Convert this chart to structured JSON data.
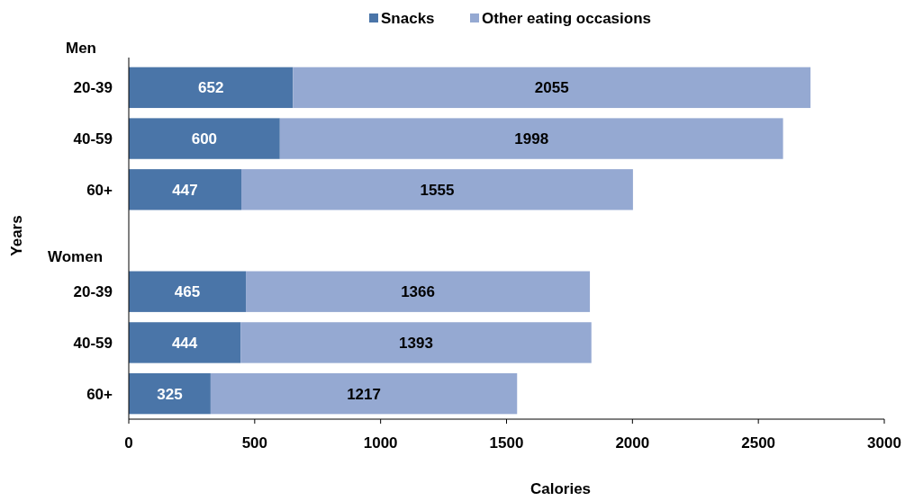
{
  "chart_data": {
    "type": "bar",
    "orientation": "horizontal",
    "stacked": true,
    "categories": [
      "20-39",
      "40-59",
      "60+",
      null,
      "20-39",
      "40-59",
      "60+"
    ],
    "series": [
      {
        "name": "Snacks",
        "color": "#4a75a8",
        "values": [
          652,
          600,
          447,
          null,
          465,
          444,
          325
        ]
      },
      {
        "name": "Other eating occasions",
        "color": "#95a9d2",
        "values": [
          2055,
          1998,
          1555,
          null,
          1366,
          1393,
          1217
        ]
      }
    ],
    "xlim": [
      0,
      3000
    ],
    "xticks": [
      0,
      500,
      1000,
      1500,
      2000,
      2500,
      3000
    ],
    "xlabel": "Calories",
    "ylabel": "Years",
    "annotations": [
      "Men",
      "Women"
    ],
    "data_labels": true,
    "legend": "top",
    "grid": false
  }
}
